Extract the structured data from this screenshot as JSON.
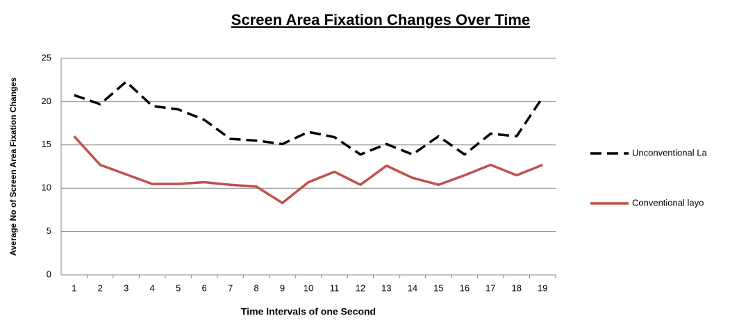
{
  "chart_data": {
    "type": "line",
    "title": "Screen Area Fixation Changes Over Time",
    "x_label": "Time Intervals of one Second",
    "y_label": "Average No of Screen Area Fixation Changes",
    "categories": [
      "1",
      "2",
      "3",
      "4",
      "5",
      "6",
      "7",
      "8",
      "9",
      "10",
      "11",
      "12",
      "13",
      "14",
      "15",
      "16",
      "17",
      "18",
      "19"
    ],
    "series": [
      {
        "name": "Unconventional La",
        "color": "#000000",
        "dash": true,
        "values": [
          20.75,
          19.7,
          22.3,
          19.5,
          19.1,
          17.9,
          15.7,
          15.5,
          15.1,
          16.5,
          15.9,
          13.9,
          15.1,
          13.9,
          16.0,
          13.9,
          16.3,
          16.0,
          20.5
        ]
      },
      {
        "name": "Conventional layo",
        "color": "#c0504d",
        "dash": false,
        "values": [
          16.0,
          12.7,
          11.6,
          10.5,
          10.5,
          10.7,
          10.4,
          10.2,
          8.3,
          10.7,
          11.9,
          10.4,
          12.6,
          11.2,
          10.4,
          11.5,
          12.7,
          11.5,
          12.7
        ]
      }
    ],
    "ylim": [
      0,
      25
    ],
    "yticks": [
      0,
      5,
      10,
      15,
      20,
      25
    ],
    "grid": true,
    "legend": "right"
  }
}
